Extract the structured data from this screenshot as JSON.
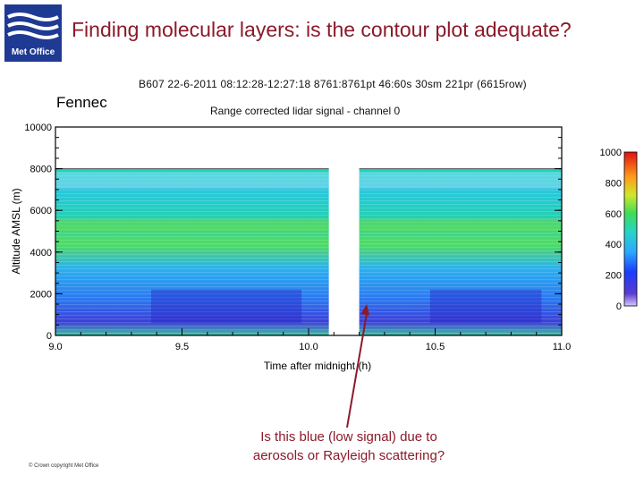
{
  "slide": {
    "title": "Finding molecular layers: is the contour plot adequate?",
    "logo_text": "Met Office",
    "campaign_label": "Fennec",
    "copyright": "© Crown copyright   Met Office"
  },
  "callout": {
    "line1": "Is this blue (low signal) due to",
    "line2": "aerosols or Rayleigh scattering?"
  },
  "colors": {
    "title": "#8b1a2a",
    "logo_bg": "#1f3a93",
    "arrow": "#8b1a2a"
  },
  "chart_data": {
    "type": "heatmap",
    "header": "B607 22-6-2011 08:12:28-12:27:18 8761:8761pt 46:60s 30sm 221pr (6615row)",
    "title": "Range corrected lidar signal - channel 0",
    "xlabel": "Time after midnight (h)",
    "ylabel": "Altitude AMSL (m)",
    "xlim": [
      9.0,
      11.0
    ],
    "ylim": [
      0,
      10000
    ],
    "x_ticks": [
      "9.0",
      "9.5",
      "10.0",
      "10.5",
      "11.0"
    ],
    "y_ticks": [
      "0",
      "2000",
      "4000",
      "6000",
      "8000",
      "10000"
    ],
    "data_gap_hours": [
      10.08,
      10.2
    ],
    "data_top_altitude_m": 8000,
    "colorbar": {
      "range": [
        0,
        1000
      ],
      "ticks": [
        "0",
        "200",
        "400",
        "600",
        "800",
        "1000"
      ]
    },
    "annotation_arrow_target": {
      "x": 10.23,
      "y": 1500
    }
  }
}
